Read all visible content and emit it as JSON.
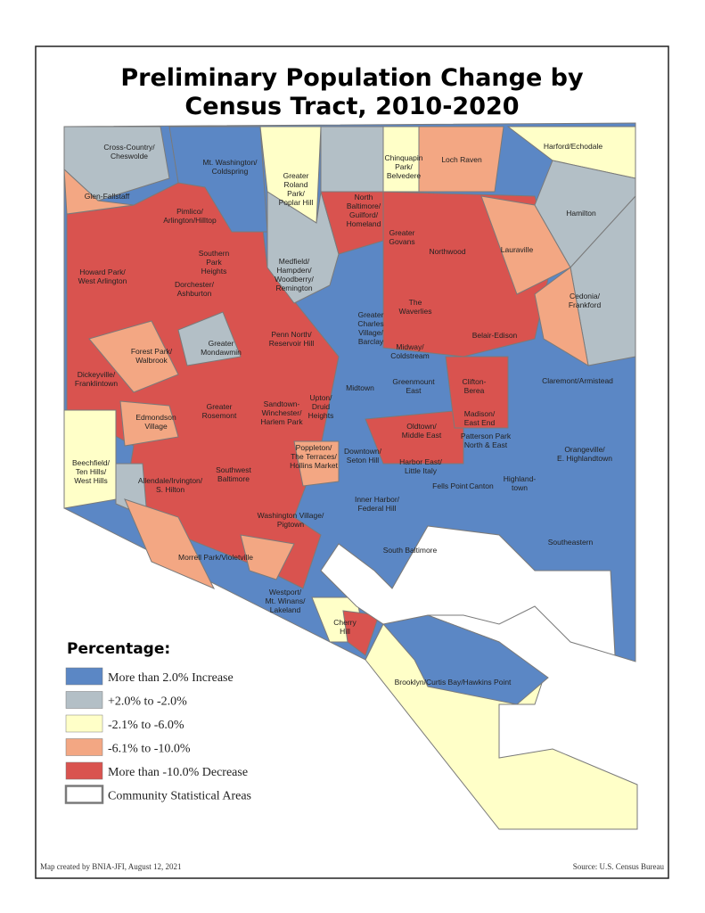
{
  "title_lines": [
    "Preliminary Population Change by",
    "Census Tract, 2010-2020"
  ],
  "labels": [
    [
      "Cross-Country/",
      "Cheswolde"
    ],
    [
      "Mt. Washington/",
      "Coldspring"
    ],
    [
      "Greater",
      "Roland",
      "Park/",
      "Poplar Hill"
    ],
    [
      "North",
      "Baltimore/",
      "Guilford/",
      "Homeland"
    ],
    [
      "Chinquapin",
      "Park/",
      "Belvedere"
    ],
    [
      "Loch Raven"
    ],
    [
      "Harford/Echodale"
    ],
    [
      "Glen-Fallstaff"
    ],
    [
      "Pimlico/",
      "Arlington/Hilltop"
    ],
    [
      "Hamilton"
    ],
    [
      "Greater",
      "Govans"
    ],
    [
      "Northwood"
    ],
    [
      "Lauraville"
    ],
    [
      "Southern",
      "Park",
      "Heights"
    ],
    [
      "Medfield/",
      "Hampden/",
      "Woodberry/",
      "Remington"
    ],
    [
      "Howard Park/",
      "West Arlington"
    ],
    [
      "Dorchester/",
      "Ashburton"
    ],
    [
      "Cedonia/",
      "Frankford"
    ],
    [
      "The",
      "Waverlies"
    ],
    [
      "Greater",
      "Charles",
      "Village/",
      "Barclay"
    ],
    [
      "Penn North/",
      "Reservoir Hill"
    ],
    [
      "Belair-Edison"
    ],
    [
      "Greater",
      "Mondawmin"
    ],
    [
      "Forest Park/",
      "Walbrook"
    ],
    [
      "Midway/",
      "Coldstream"
    ],
    [
      "Dickeyville/",
      "Franklintown"
    ],
    [
      "Claremont/Armistead"
    ],
    [
      "Greenmount",
      "East"
    ],
    [
      "Clifton-",
      "Berea"
    ],
    [
      "Midtown"
    ],
    [
      "Upton/",
      "Druid",
      "Heights"
    ],
    [
      "Sandtown-",
      "Winchester/",
      "Harlem Park"
    ],
    [
      "Greater",
      "Rosemont"
    ],
    [
      "Edmondson",
      "Village"
    ],
    [
      "Madison/",
      "East End"
    ],
    [
      "Oldtown/",
      "Middle East"
    ],
    [
      "Patterson Park",
      "North & East"
    ],
    [
      "Poppleton/",
      "The Terraces/",
      "Hollins Market"
    ],
    [
      "Downtown/",
      "Seton Hill"
    ],
    [
      "Orangeville/",
      "E. Highlandtown"
    ],
    [
      "Beechfield/",
      "Ten Hills/",
      "West Hills"
    ],
    [
      "Harbor East/",
      "Little Italy"
    ],
    [
      "Fells Point"
    ],
    [
      "Canton"
    ],
    [
      "Highland-",
      "town"
    ],
    [
      "Allendale/Irvington/",
      "S. Hilton"
    ],
    [
      "Southwest",
      "Baltimore"
    ],
    [
      "Inner Harbor/",
      "Federal Hill"
    ],
    [
      "Washington Village/",
      "Pigtown"
    ],
    [
      "South Baltimore"
    ],
    [
      "Southeastern"
    ],
    [
      "Morrell Park/Violetville"
    ],
    [
      "Westport/",
      "Mt. Winans/",
      "Lakeland"
    ],
    [
      "Cherry",
      "Hill"
    ],
    [
      "Brooklyn/Curtis Bay/Hawkins Point"
    ]
  ],
  "legend": {
    "title": "Percentage:",
    "items": [
      {
        "label": "More than 2.0% Increase",
        "color": "#5b87c5"
      },
      {
        "label": "+2.0% to -2.0%",
        "color": "#b3bfc6"
      },
      {
        "label": "-2.1% to -6.0%",
        "color": "#ffffc8"
      },
      {
        "label": "-6.1% to -10.0%",
        "color": "#f3a783"
      },
      {
        "label": "More than -10.0% Decrease",
        "color": "#d9534f"
      },
      {
        "label": "Community Statistical Areas",
        "color": "#ffffff"
      }
    ]
  },
  "footer": {
    "credit": "Map created by BNIA-JFI, August 12, 2021",
    "source": "Source: U.S. Census Bureau"
  }
}
